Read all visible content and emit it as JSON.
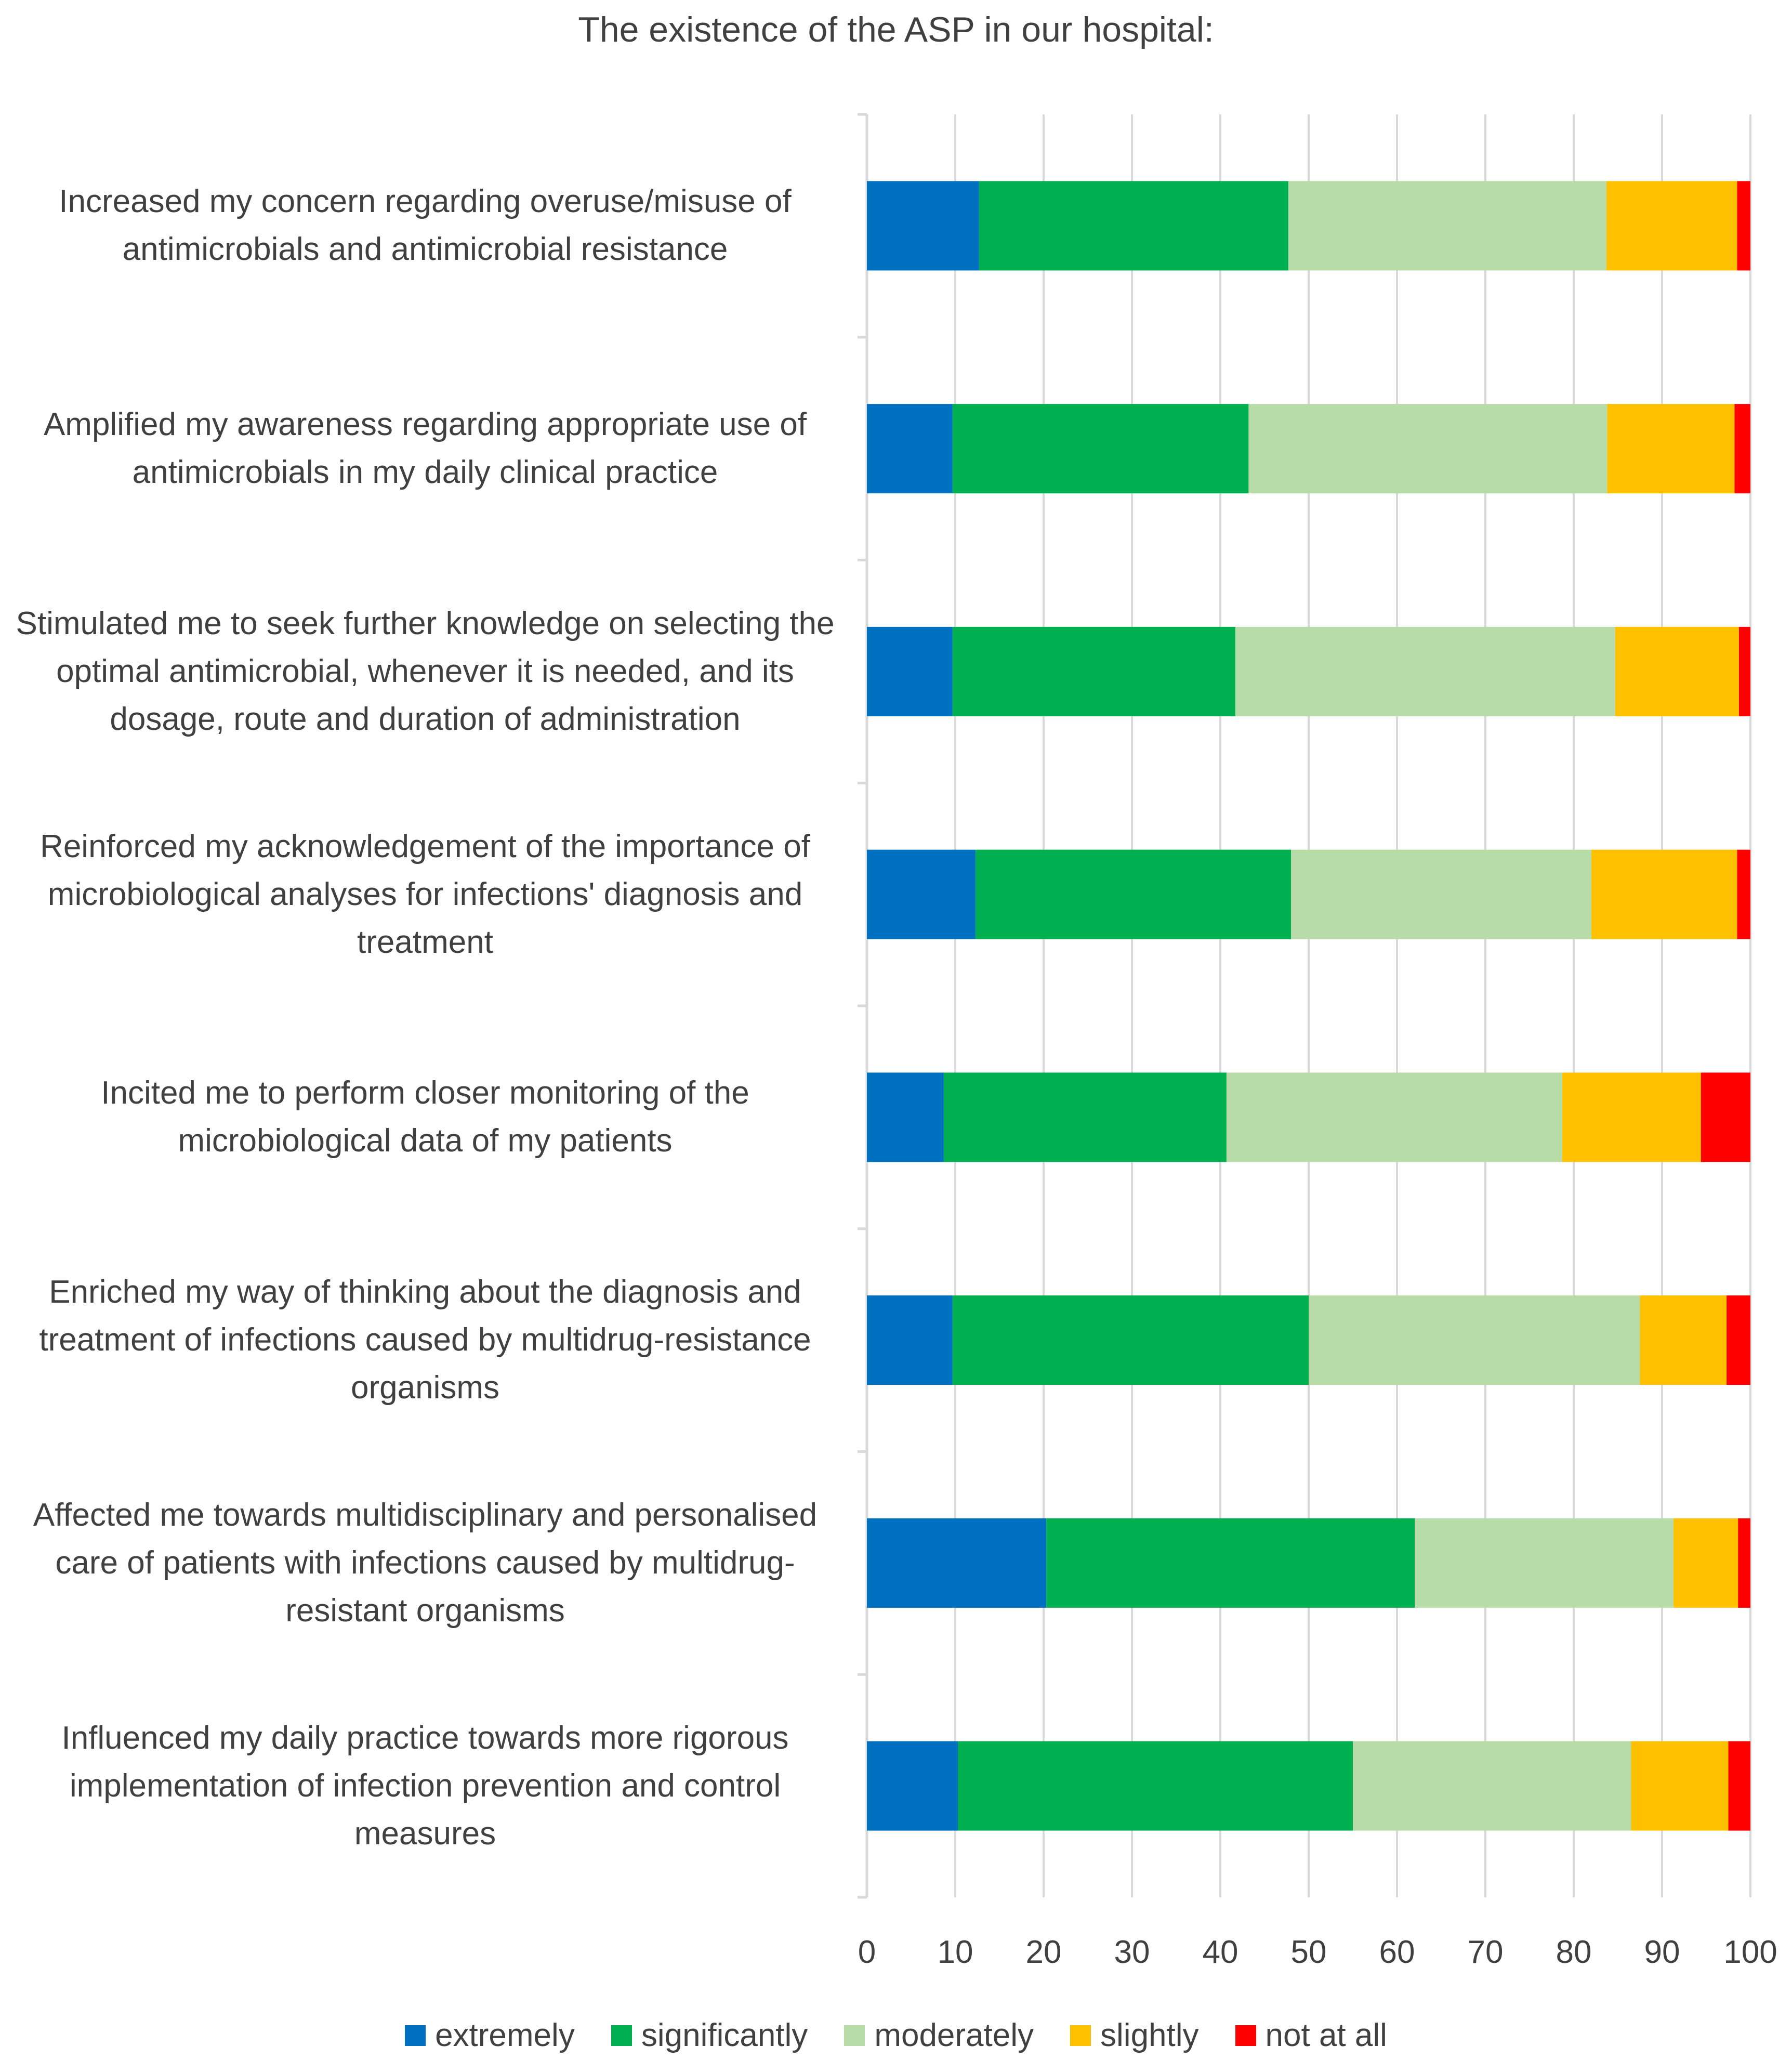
{
  "chart_data": {
    "type": "bar",
    "orientation": "horizontal",
    "stacked": true,
    "title": "The existence of the ASP in our hospital:",
    "categories": [
      [
        "Increased my concern regarding overuse/misuse of",
        "antimicrobials and antimicrobial resistance"
      ],
      [
        "Amplified my awareness regarding appropriate use of",
        "antimicrobials in my daily clinical practice"
      ],
      [
        "Stimulated me to seek further knowledge on selecting the",
        "optimal antimicrobial, whenever it is needed, and its",
        "dosage, route and duration of administration"
      ],
      [
        "Reinforced my acknowledgement of the importance of",
        "microbiological analyses for infections' diagnosis and",
        "treatment"
      ],
      [
        "Incited me to perform closer monitoring of the",
        "microbiological data of my patients"
      ],
      [
        "Enriched my way of thinking about the diagnosis and",
        "treatment of infections caused by multidrug-resistance",
        "organisms"
      ],
      [
        "Affected me towards multidisciplinary and personalised",
        "care of patients with infections caused by multidrug-",
        "resistant organisms"
      ],
      [
        "Influenced my daily practice towards more rigorous",
        "implementation of infection prevention and control",
        "measures"
      ]
    ],
    "series": [
      {
        "name": "extremely",
        "color": "#0070C0",
        "values": [
          12.7,
          9.7,
          9.7,
          12.3,
          8.7,
          9.7,
          20.3,
          10.3
        ]
      },
      {
        "name": "significantly",
        "color": "#00B050",
        "values": [
          35.0,
          33.5,
          32.0,
          35.7,
          32.0,
          40.3,
          41.7,
          44.7
        ]
      },
      {
        "name": "moderately",
        "color": "#B8DCA8",
        "values": [
          36.0,
          40.6,
          43.0,
          34.0,
          38.0,
          37.5,
          29.3,
          31.5
        ]
      },
      {
        "name": "slightly",
        "color": "#FFC000",
        "values": [
          14.8,
          14.4,
          14.0,
          16.5,
          15.7,
          9.8,
          7.3,
          11.0
        ]
      },
      {
        "name": "not at all",
        "color": "#FF0000",
        "values": [
          1.5,
          1.8,
          1.3,
          1.5,
          5.6,
          2.7,
          1.4,
          2.5
        ]
      }
    ],
    "xlim": [
      0,
      100
    ],
    "xticks": [
      "0",
      "10",
      "20",
      "30",
      "40",
      "50",
      "60",
      "70",
      "80",
      "90",
      "100"
    ],
    "grid": true,
    "legend_position": "bottom"
  }
}
